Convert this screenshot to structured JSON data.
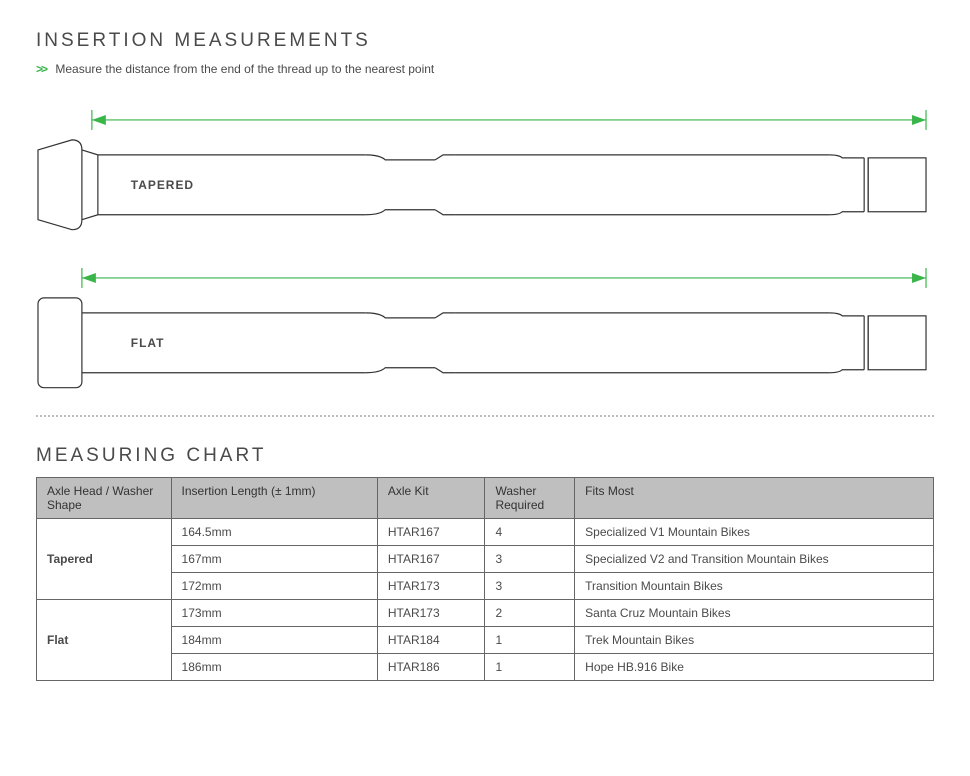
{
  "section1": {
    "title": "INSERTION MEASUREMENTS",
    "chevron": ">>",
    "subtitle": "Measure the distance from the end of the thread up to the nearest point"
  },
  "diagrams": {
    "tapered_label": "TAPERED",
    "flat_label": "FLAT",
    "stroke_color": "#333333",
    "dim_color": "#39b54a"
  },
  "section2": {
    "title": "MEASURING CHART"
  },
  "table": {
    "columns": [
      "Axle Head / Washer Shape",
      "Insertion Length (± 1mm)",
      "Axle Kit",
      "Washer Required",
      "Fits Most"
    ],
    "col_widths_pct": [
      15,
      23,
      12,
      10,
      40
    ],
    "groups": [
      {
        "head": "Tapered",
        "rows": [
          {
            "length": "164.5mm",
            "kit": "HTAR167",
            "washer": "4",
            "fits": "Specialized V1 Mountain Bikes"
          },
          {
            "length": "167mm",
            "kit": "HTAR167",
            "washer": "3",
            "fits": "Specialized V2 and Transition Mountain Bikes"
          },
          {
            "length": "172mm",
            "kit": "HTAR173",
            "washer": "3",
            "fits": "Transition Mountain Bikes"
          }
        ]
      },
      {
        "head": "Flat",
        "rows": [
          {
            "length": "173mm",
            "kit": "HTAR173",
            "washer": "2",
            "fits": "Santa Cruz Mountain Bikes"
          },
          {
            "length": "184mm",
            "kit": "HTAR184",
            "washer": "1",
            "fits": "Trek Mountain Bikes"
          },
          {
            "length": "186mm",
            "kit": "HTAR186",
            "washer": "1",
            "fits": "Hope HB.916 Bike"
          }
        ]
      }
    ]
  },
  "style": {
    "title_color": "#4a4a4a",
    "accent_green": "#39b54a",
    "table_header_bg": "#bfbfbf",
    "table_border": "#666666",
    "dot_divider": "#bcbcbc",
    "background": "#ffffff"
  }
}
